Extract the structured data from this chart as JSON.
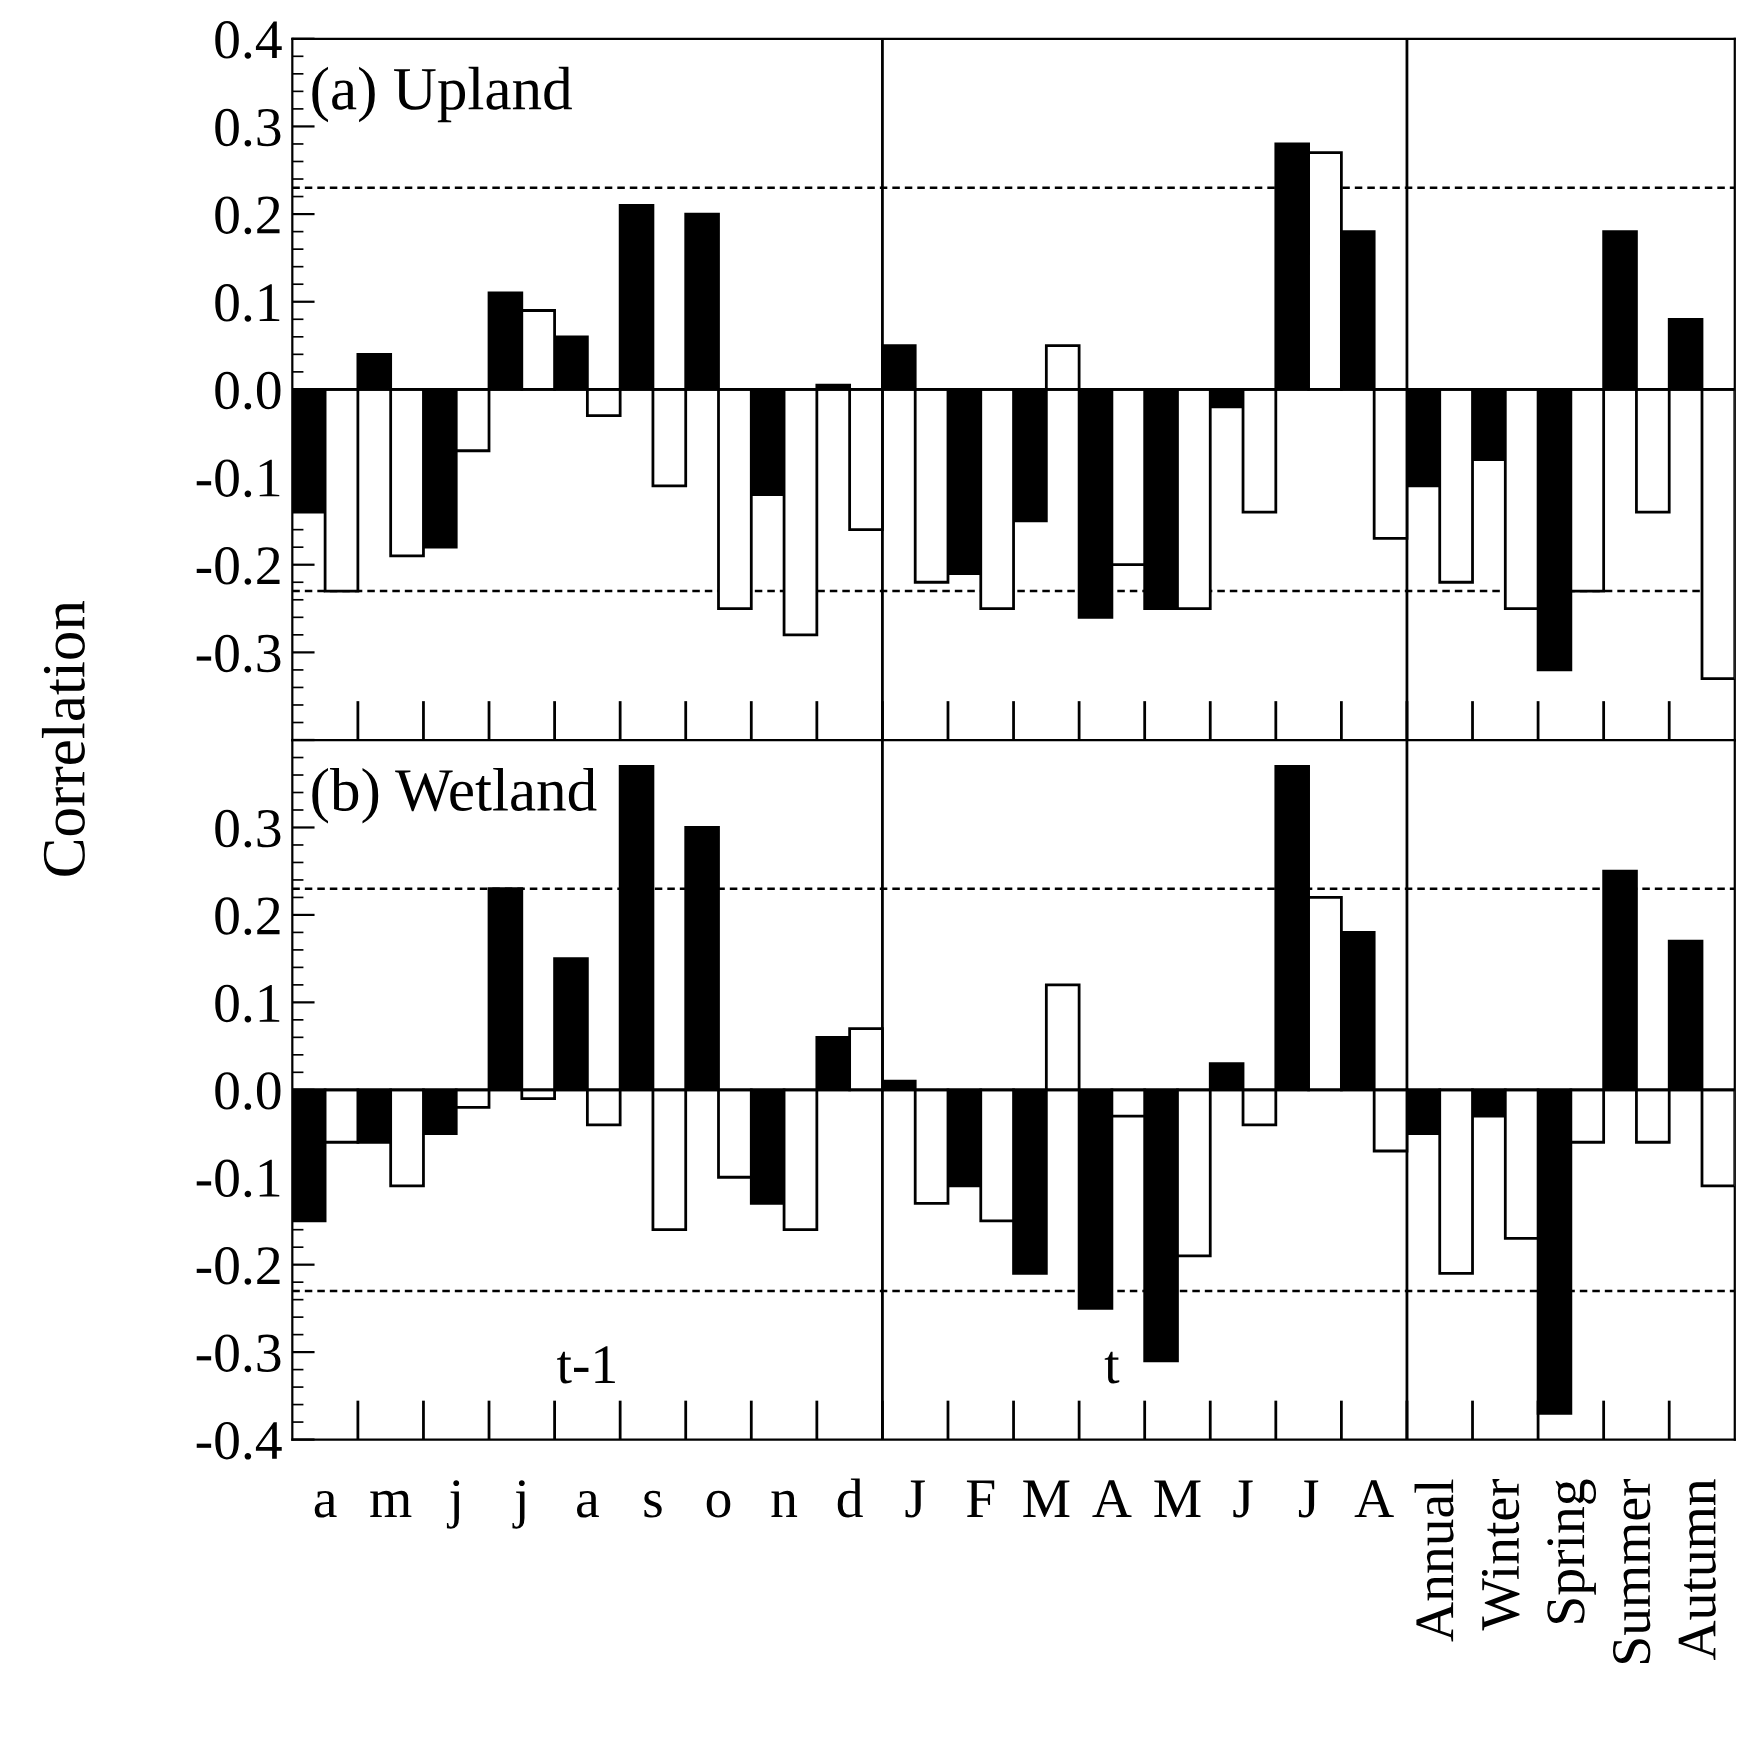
{
  "chart_data": [
    {
      "type": "bar",
      "title": "(a) Upland",
      "ylabel": "Correlation",
      "categories": [
        null,
        null,
        null,
        null,
        null,
        null,
        null,
        null,
        null,
        null,
        null,
        null,
        null,
        null,
        null,
        null,
        null,
        null,
        null,
        null,
        null,
        null
      ],
      "series": [
        {
          "color": "#000000",
          "values": [
            -0.14,
            0.04,
            -0.18,
            0.11,
            0.06,
            0.21,
            0.2,
            -0.12,
            0.005,
            0.05,
            -0.21,
            -0.15,
            -0.26,
            -0.25,
            -0.02,
            0.28,
            0.18,
            -0.11,
            -0.08,
            -0.32,
            0.18,
            0.08
          ]
        },
        {
          "color": "#ffffff",
          "values": [
            -0.23,
            -0.19,
            -0.07,
            0.09,
            -0.03,
            -0.11,
            -0.25,
            -0.28,
            -0.16,
            -0.22,
            -0.25,
            0.05,
            -0.2,
            -0.25,
            -0.14,
            0.27,
            -0.17,
            -0.22,
            -0.25,
            -0.23,
            -0.14,
            -0.33
          ]
        }
      ],
      "ylim": [
        -0.4,
        0.4
      ],
      "yticks": [
        {
          "value": -0.4,
          "label": null
        },
        {
          "value": -0.3,
          "label": "-0.3"
        },
        {
          "value": -0.2,
          "label": "-0.2"
        },
        {
          "value": -0.1,
          "label": "-0.1"
        },
        {
          "value": 0,
          "label": "0.0"
        },
        {
          "value": 0.1,
          "label": "0.1"
        },
        {
          "value": 0.2,
          "label": "0.2"
        },
        {
          "value": 0.3,
          "label": "0.3"
        },
        {
          "value": 0.4,
          "label": "0.4"
        }
      ],
      "ref_lines": [
        {
          "axis": "y",
          "value": 0.23,
          "line_style": "dashed"
        },
        {
          "axis": "y",
          "value": -0.23,
          "line_style": "dashed"
        },
        {
          "axis": "y",
          "value": 0,
          "line_style": "solid"
        }
      ],
      "tick_labels": "y",
      "grid": false,
      "legend": false
    },
    {
      "type": "bar",
      "title": "(b) Wetland",
      "categories": [
        "a",
        "m",
        "j",
        "j",
        "a",
        "s",
        "o",
        "n",
        "d",
        "J",
        "F",
        "M",
        "A",
        "M",
        "J",
        "J",
        "A",
        "Annual",
        "Winter",
        "Spring",
        "Summer",
        "Autumn"
      ],
      "series": [
        {
          "color": "#000000",
          "values": [
            -0.15,
            -0.06,
            -0.05,
            0.23,
            0.15,
            0.37,
            0.3,
            -0.13,
            0.06,
            0.01,
            -0.11,
            -0.21,
            -0.25,
            -0.31,
            0.03,
            0.37,
            0.18,
            -0.05,
            -0.03,
            -0.37,
            0.25,
            0.17
          ]
        },
        {
          "color": "#ffffff",
          "values": [
            -0.06,
            -0.11,
            -0.02,
            -0.01,
            -0.04,
            -0.16,
            -0.1,
            -0.16,
            0.07,
            -0.13,
            -0.15,
            0.12,
            -0.03,
            -0.19,
            -0.04,
            0.22,
            -0.07,
            -0.21,
            -0.17,
            -0.06,
            -0.06,
            -0.11
          ]
        }
      ],
      "ylim": [
        -0.4,
        0.4
      ],
      "yticks": [
        {
          "value": -0.4,
          "label": "-0.4"
        },
        {
          "value": -0.3,
          "label": "-0.3"
        },
        {
          "value": -0.2,
          "label": "-0.2"
        },
        {
          "value": -0.1,
          "label": "-0.1"
        },
        {
          "value": 0,
          "label": "0.0"
        },
        {
          "value": 0.1,
          "label": "0.1"
        },
        {
          "value": 0.2,
          "label": "0.2"
        },
        {
          "value": 0.3,
          "label": "0.3"
        },
        {
          "value": 0.4,
          "label": null
        }
      ],
      "ref_lines": [
        {
          "axis": "y",
          "value": 0.23,
          "line_style": "dashed"
        },
        {
          "axis": "y",
          "value": -0.23,
          "line_style": "dashed"
        },
        {
          "axis": "y",
          "value": 0,
          "line_style": "solid"
        }
      ],
      "annotations": [
        "t-1",
        "t"
      ],
      "grid": false,
      "legend": false
    }
  ]
}
